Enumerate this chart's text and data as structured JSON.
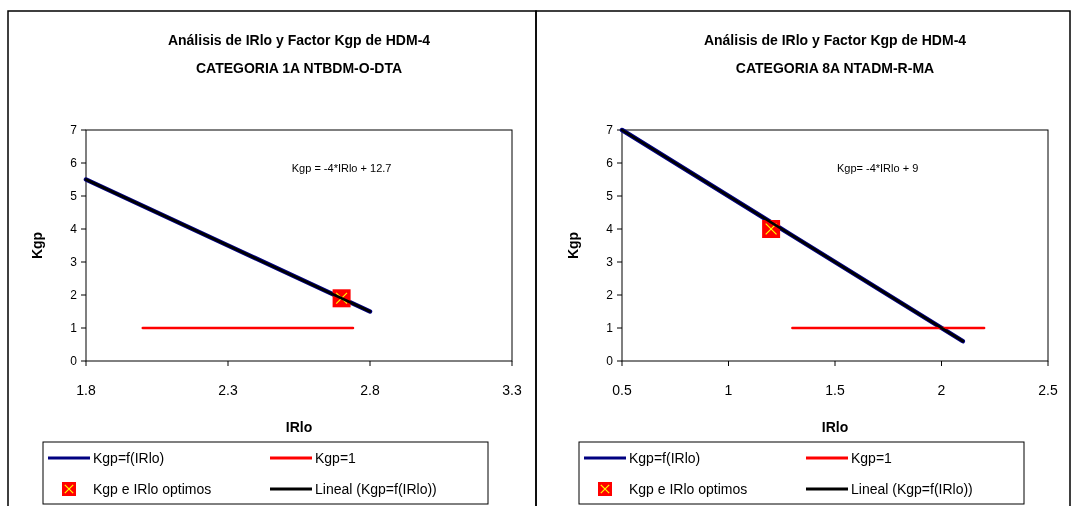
{
  "chart_data": [
    {
      "type": "line",
      "title": "Análisis de IRlo y Factor Kgp de HDM-4",
      "subtitle": "CATEGORIA 1A NTBDM-O-DTA",
      "xlabel": "IRlo",
      "ylabel": "Kgp",
      "xlim": [
        1.8,
        3.3
      ],
      "xticks": [
        1.8,
        2.3,
        2.8,
        3.3
      ],
      "ylim": [
        0,
        7
      ],
      "yticks": [
        0,
        1,
        2,
        3,
        4,
        5,
        6,
        7
      ],
      "legend": "bottom",
      "annotations": [
        "Kgp = -4*IRlo + 12.7"
      ],
      "series": [
        {
          "name": "Kgp=f(IRlo)",
          "color": "#000080",
          "x": [
            1.8,
            2.3,
            2.8
          ],
          "values": [
            5.5,
            3.5,
            1.5
          ]
        },
        {
          "name": "Kgp=1",
          "color": "#ff0000",
          "x": [
            2.0,
            2.74
          ],
          "values": [
            1,
            1
          ]
        },
        {
          "name": "Kgp e IRlo optimos",
          "type": "scatter",
          "marker": "square",
          "color": "#ff0000",
          "x": [
            2.7
          ],
          "values": [
            1.9
          ]
        },
        {
          "name": "Lineal (Kgp=f(IRlo))",
          "color": "#000000",
          "x": [
            1.8,
            2.8
          ],
          "values": [
            5.5,
            1.5
          ]
        }
      ]
    },
    {
      "type": "line",
      "title": "Análisis de IRlo y Factor Kgp de HDM-4",
      "subtitle": "CATEGORIA 8A NTADM-R-MA",
      "xlabel": "IRlo",
      "ylabel": "Kgp",
      "xlim": [
        0.5,
        2.5
      ],
      "xticks": [
        0.5,
        1,
        1.5,
        2,
        2.5
      ],
      "ylim": [
        0,
        7
      ],
      "yticks": [
        0,
        1,
        2,
        3,
        4,
        5,
        6,
        7
      ],
      "legend": "bottom",
      "annotations": [
        "Kgp= -4*IRlo + 9"
      ],
      "series": [
        {
          "name": "Kgp=f(IRlo)",
          "color": "#000080",
          "x": [
            0.5,
            1.3,
            2.1
          ],
          "values": [
            7,
            3.8,
            0.6
          ]
        },
        {
          "name": "Kgp=1",
          "color": "#ff0000",
          "x": [
            1.3,
            2.2
          ],
          "values": [
            1,
            1
          ]
        },
        {
          "name": "Kgp e IRlo optimos",
          "type": "scatter",
          "marker": "square",
          "color": "#ff0000",
          "x": [
            1.2
          ],
          "values": [
            4
          ]
        },
        {
          "name": "Lineal (Kgp=f(IRlo))",
          "color": "#000000",
          "x": [
            0.5,
            2.1
          ],
          "values": [
            7,
            0.6
          ]
        }
      ]
    }
  ]
}
